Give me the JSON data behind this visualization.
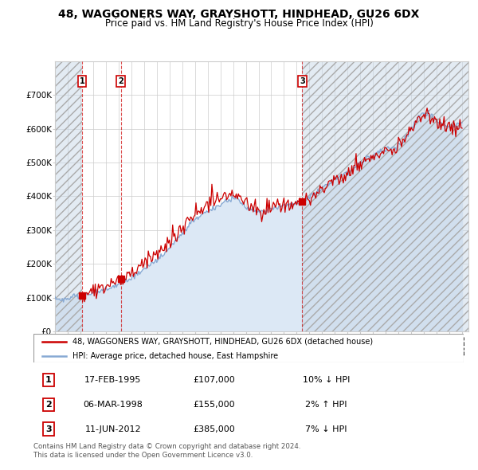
{
  "title": "48, WAGGONERS WAY, GRAYSHOTT, HINDHEAD, GU26 6DX",
  "subtitle": "Price paid vs. HM Land Registry's House Price Index (HPI)",
  "ylim": [
    0,
    800000
  ],
  "yticks": [
    0,
    100000,
    200000,
    300000,
    400000,
    500000,
    600000,
    700000
  ],
  "ytick_labels": [
    "£0",
    "£100K",
    "£200K",
    "£300K",
    "£400K",
    "£500K",
    "£600K",
    "£700K"
  ],
  "sale_year_floats": [
    1995.12,
    1998.18,
    2012.44
  ],
  "sale_prices": [
    107000,
    155000,
    385000
  ],
  "sale_labels": [
    "1",
    "2",
    "3"
  ],
  "sale_info": [
    {
      "label": "1",
      "date": "17-FEB-1995",
      "price": "£107,000",
      "hpi": "10% ↓ HPI"
    },
    {
      "label": "2",
      "date": "06-MAR-1998",
      "price": "£155,000",
      "hpi": "2% ↑ HPI"
    },
    {
      "label": "3",
      "date": "11-JUN-2012",
      "price": "£385,000",
      "hpi": "7% ↓ HPI"
    }
  ],
  "legend_line1": "48, WAGGONERS WAY, GRAYSHOTT, HINDHEAD, GU26 6DX (detached house)",
  "legend_line2": "HPI: Average price, detached house, East Hampshire",
  "footer": "Contains HM Land Registry data © Crown copyright and database right 2024.\nThis data is licensed under the Open Government Licence v3.0.",
  "line_color": "#cc0000",
  "hpi_color": "#88aad4",
  "hpi_fill_color": "#dce8f5",
  "grid_color": "#cccccc",
  "hatch_region_color": "#c8d8e8",
  "title_fontsize": 10,
  "subtitle_fontsize": 8.5,
  "tick_fontsize": 7.5,
  "xstart": 1993,
  "xend": 2025.5,
  "hpi_years": [
    1993,
    1994,
    1995,
    1996,
    1997,
    1998,
    1999,
    2000,
    2001,
    2002,
    2003,
    2004,
    2005,
    2006,
    2007,
    2008,
    2009,
    2010,
    2011,
    2012,
    2013,
    2014,
    2015,
    2016,
    2017,
    2018,
    2019,
    2020,
    2021,
    2022,
    2023,
    2024,
    2025
  ],
  "hpi_vals": [
    92000,
    97000,
    105000,
    114000,
    124000,
    138000,
    158000,
    184000,
    212000,
    248000,
    290000,
    330000,
    355000,
    375000,
    395000,
    370000,
    355000,
    362000,
    372000,
    380000,
    398000,
    422000,
    450000,
    472000,
    498000,
    520000,
    538000,
    552000,
    600000,
    645000,
    625000,
    608000,
    618000
  ]
}
